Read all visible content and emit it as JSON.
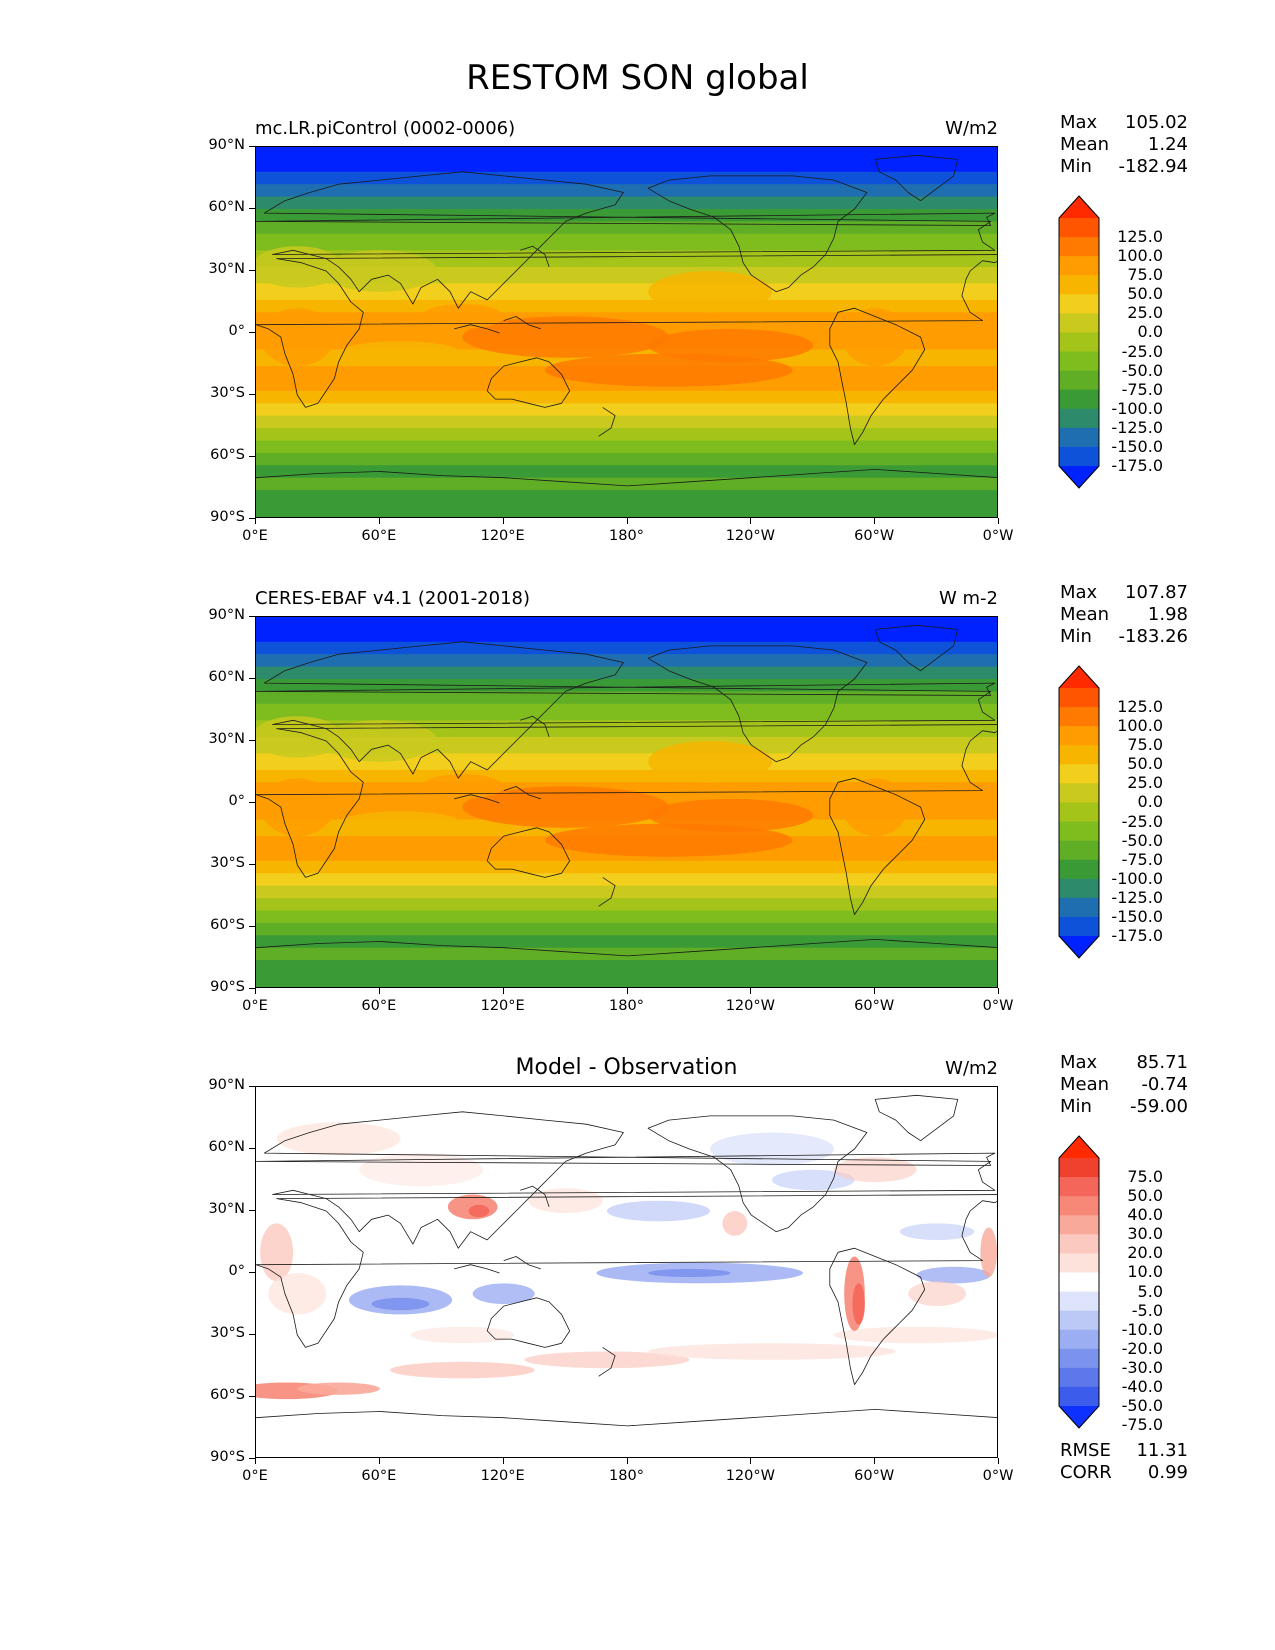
{
  "title": "RESTOM SON global",
  "lat_labels": [
    "90°N",
    "60°N",
    "30°N",
    "0°",
    "30°S",
    "60°S",
    "90°S"
  ],
  "lon_labels": [
    "0°E",
    "60°E",
    "120°E",
    "180°",
    "120°W",
    "60°W",
    "0°W"
  ],
  "panels": [
    {
      "id": "model",
      "title_left": "mc.LR.piControl (0002-0006)",
      "title_center": "",
      "units": "W/m2",
      "stats": {
        "max_label": "Max",
        "max": "105.02",
        "mean_label": "Mean",
        "mean": "1.24",
        "min_label": "Min",
        "min": "-182.94"
      },
      "colorbar": {
        "labels": [
          "125.0",
          "100.0",
          "75.0",
          "50.0",
          "25.0",
          "0.0",
          "-25.0",
          "-50.0",
          "-75.0",
          "-100.0",
          "-125.0",
          "-150.0",
          "-175.0"
        ],
        "colors": [
          "#ff2a00",
          "#ff5500",
          "#ff7a00",
          "#ff9c00",
          "#f7b500",
          "#f2cf1c",
          "#c9c91e",
          "#a4c41a",
          "#7fbd1f",
          "#5fae26",
          "#3a9a35",
          "#2d8a6a",
          "#1f6fb0",
          "#0d52d9",
          "#0022ff"
        ]
      }
    },
    {
      "id": "obs",
      "title_left": "CERES-EBAF v4.1 (2001-2018)",
      "title_center": "",
      "units": "W m-2",
      "stats": {
        "max_label": "Max",
        "max": "107.87",
        "mean_label": "Mean",
        "mean": "1.98",
        "min_label": "Min",
        "min": "-183.26"
      },
      "colorbar": {
        "labels": [
          "125.0",
          "100.0",
          "75.0",
          "50.0",
          "25.0",
          "0.0",
          "-25.0",
          "-50.0",
          "-75.0",
          "-100.0",
          "-125.0",
          "-150.0",
          "-175.0"
        ],
        "colors": [
          "#ff2a00",
          "#ff5500",
          "#ff7a00",
          "#ff9c00",
          "#f7b500",
          "#f2cf1c",
          "#c9c91e",
          "#a4c41a",
          "#7fbd1f",
          "#5fae26",
          "#3a9a35",
          "#2d8a6a",
          "#1f6fb0",
          "#0d52d9",
          "#0022ff"
        ]
      }
    },
    {
      "id": "diff",
      "title_left": "",
      "title_center": "Model - Observation",
      "units": "W/m2",
      "stats": {
        "max_label": "Max",
        "max": "85.71",
        "mean_label": "Mean",
        "mean": "-0.74",
        "min_label": "Min",
        "min": "-59.00"
      },
      "extra": {
        "rmse_label": "RMSE",
        "rmse": "11.31",
        "corr_label": "CORR",
        "corr": "0.99"
      },
      "colorbar": {
        "labels": [
          "75.0",
          "50.0",
          "40.0",
          "30.0",
          "20.0",
          "10.0",
          "5.0",
          "-5.0",
          "-10.0",
          "-20.0",
          "-30.0",
          "-40.0",
          "-50.0",
          "-75.0"
        ],
        "colors": [
          "#ff2a00",
          "#f0412e",
          "#f4665a",
          "#f78878",
          "#f9a99a",
          "#fbc9bf",
          "#fde2dc",
          "#ffffff",
          "#dde4fb",
          "#bcc9f6",
          "#9caef2",
          "#7c93ee",
          "#5c78ea",
          "#3c5deb",
          "#0d32ff"
        ]
      }
    }
  ]
}
